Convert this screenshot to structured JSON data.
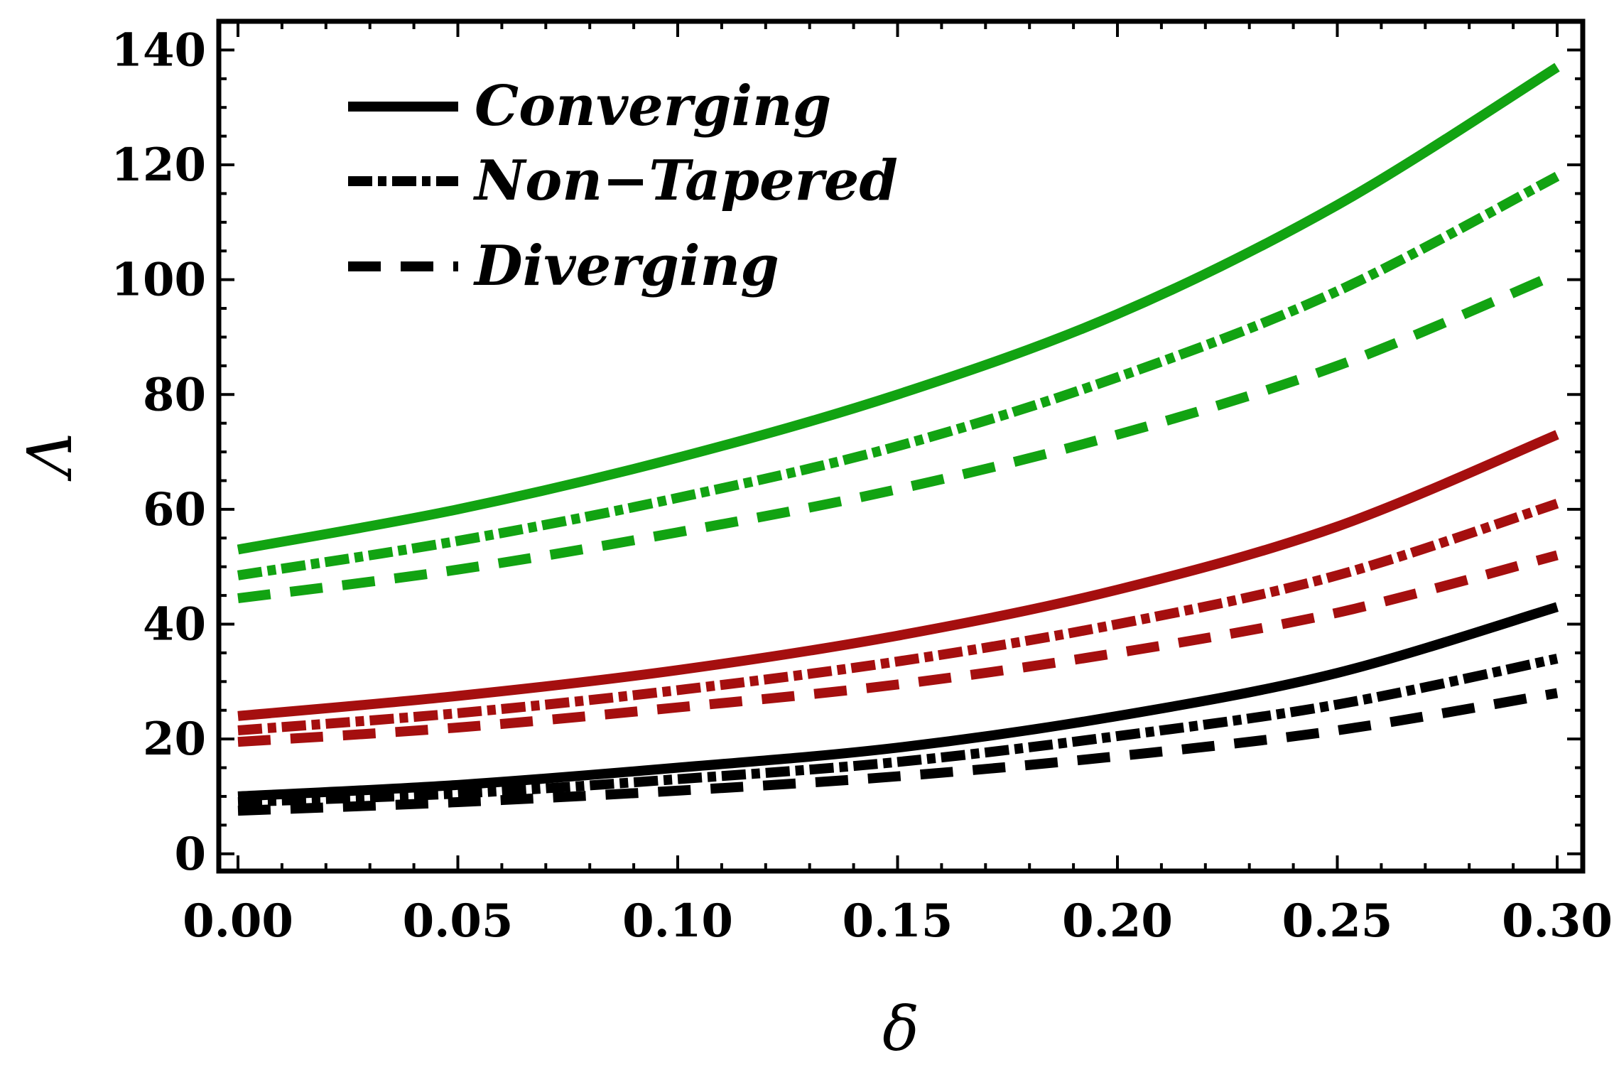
{
  "chart_data": {
    "type": "line",
    "title": "",
    "xlabel": "δ",
    "ylabel": "Λ",
    "xlim": [
      0.0,
      0.3
    ],
    "ylim": [
      -3,
      145
    ],
    "xticks": [
      0.0,
      0.05,
      0.1,
      0.15,
      0.2,
      0.25,
      0.3
    ],
    "xtick_labels": [
      "0.00",
      "0.05",
      "0.10",
      "0.15",
      "0.20",
      "0.25",
      "0.30"
    ],
    "yticks": [
      0,
      20,
      40,
      60,
      80,
      100,
      120,
      140
    ],
    "ytick_labels": [
      "0",
      "20",
      "40",
      "60",
      "80",
      "100",
      "120",
      "140"
    ],
    "legend": {
      "position": "top-left",
      "entries": [
        {
          "label": "Converging",
          "style": "solid"
        },
        {
          "label": "Non−Tapered",
          "style": "dashdot"
        },
        {
          "label": "Diverging",
          "style": "dashed"
        }
      ]
    },
    "x": [
      0.0,
      0.05,
      0.1,
      0.15,
      0.2,
      0.25,
      0.3
    ],
    "series": [
      {
        "name": "Converging (green)",
        "color": "#12a312",
        "style": "solid",
        "values": [
          53,
          60,
          69,
          80,
          94,
          113,
          137
        ]
      },
      {
        "name": "Non−Tapered (green)",
        "color": "#12a312",
        "style": "dashdot",
        "values": [
          48.5,
          54.5,
          62,
          71,
          83,
          98,
          118
        ]
      },
      {
        "name": "Diverging (green)",
        "color": "#12a312",
        "style": "dashed",
        "values": [
          44.5,
          49.5,
          56,
          63.5,
          73,
          85,
          101
        ]
      },
      {
        "name": "Converging (red)",
        "color": "#a50f0f",
        "style": "solid",
        "values": [
          24,
          27.5,
          32,
          38,
          46,
          57,
          73
        ]
      },
      {
        "name": "Non−Tapered (red)",
        "color": "#a50f0f",
        "style": "dashdot",
        "values": [
          21.5,
          24.5,
          28.5,
          33.5,
          40,
          48.5,
          61
        ]
      },
      {
        "name": "Diverging (red)",
        "color": "#a50f0f",
        "style": "dashed",
        "values": [
          19.5,
          22,
          25.5,
          29.5,
          35,
          42,
          52
        ]
      },
      {
        "name": "Converging (black)",
        "color": "#000000",
        "style": "solid",
        "values": [
          10,
          12,
          15,
          18.5,
          24,
          31.5,
          43
        ]
      },
      {
        "name": "Non−Tapered (black)",
        "color": "#000000",
        "style": "dashdot",
        "values": [
          9,
          10.5,
          13,
          16,
          20.5,
          26,
          34
        ]
      },
      {
        "name": "Diverging (black)",
        "color": "#000000",
        "style": "dashed",
        "values": [
          7.5,
          9,
          11,
          13.5,
          17,
          21.5,
          28
        ]
      }
    ]
  }
}
